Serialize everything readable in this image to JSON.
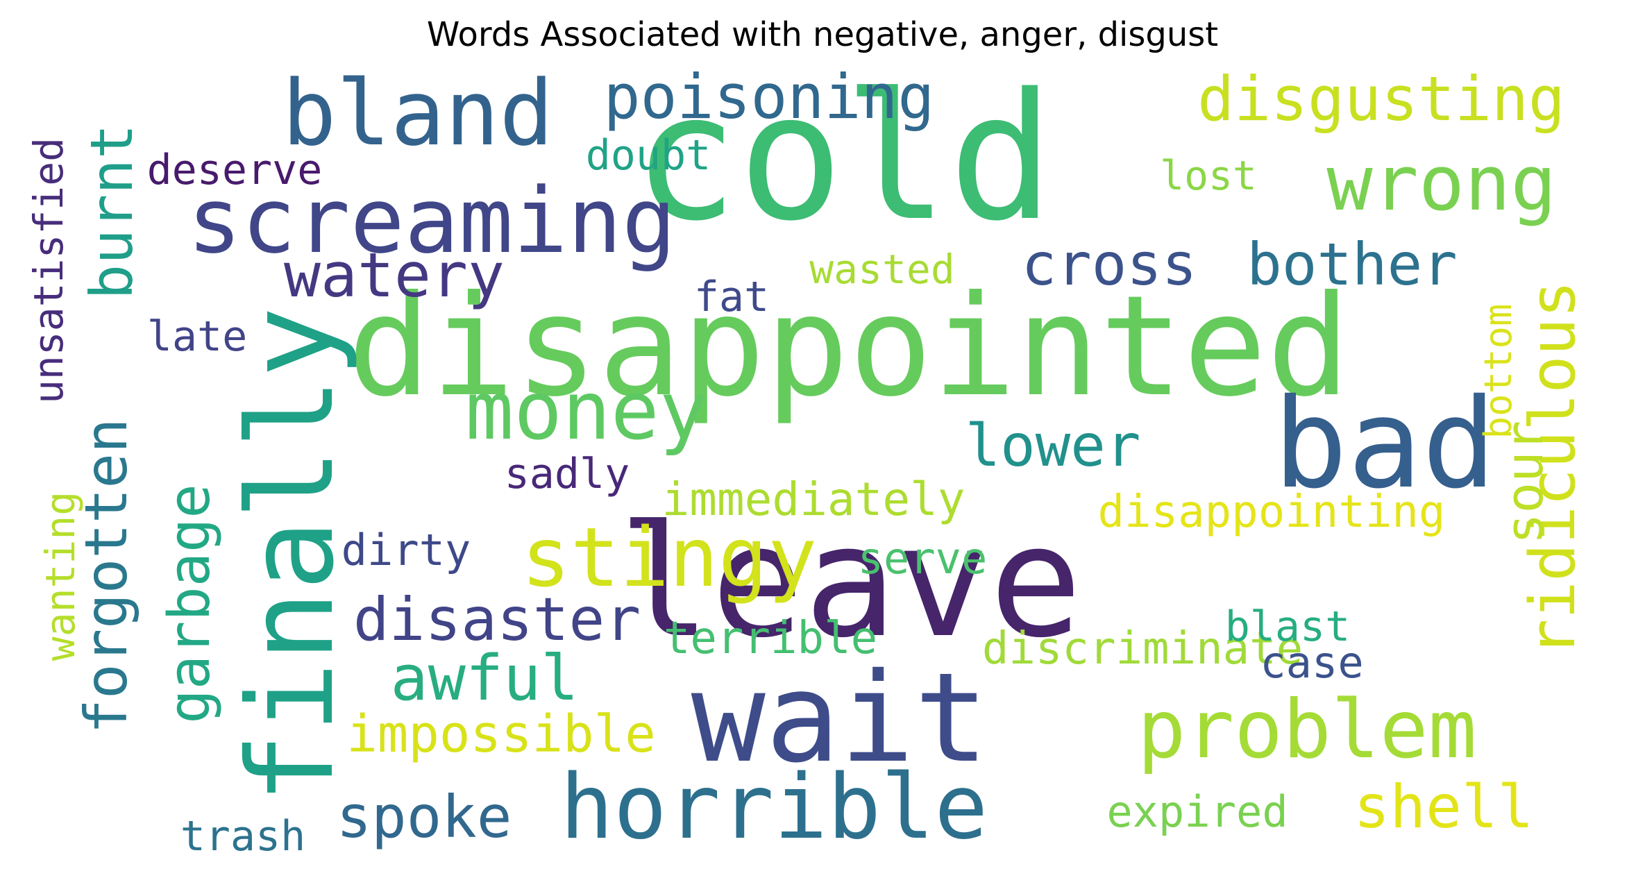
{
  "title": "Words Associated with negative, anger, disgust",
  "words": [
    {
      "text": "cold",
      "color": "#3dbc74"
    },
    {
      "text": "disappointed",
      "color": "#66cb5d"
    },
    {
      "text": "leave",
      "color": "#46256b"
    },
    {
      "text": "bad",
      "color": "#355f8d"
    },
    {
      "text": "wait",
      "color": "#3e4c8a"
    },
    {
      "text": "finally",
      "color": "#1fa187"
    },
    {
      "text": "bland",
      "color": "#33638d"
    },
    {
      "text": "screaming",
      "color": "#404688"
    },
    {
      "text": "stingy",
      "color": "#d2e21b"
    },
    {
      "text": "horrible",
      "color": "#2d708e"
    },
    {
      "text": "problem",
      "color": "#a5db36"
    },
    {
      "text": "money",
      "color": "#5ec962"
    },
    {
      "text": "wrong",
      "color": "#7ad151"
    },
    {
      "text": "disgusting",
      "color": "#c8e020"
    },
    {
      "text": "poisoning",
      "color": "#31688e"
    },
    {
      "text": "watery",
      "color": "#453882"
    },
    {
      "text": "cross",
      "color": "#3b528b"
    },
    {
      "text": "bother",
      "color": "#2c728e"
    },
    {
      "text": "ridiculous",
      "color": "#d0e11c"
    },
    {
      "text": "burnt",
      "color": "#1f9e89"
    },
    {
      "text": "forgotten",
      "color": "#2a788e"
    },
    {
      "text": "garbage",
      "color": "#22a884"
    },
    {
      "text": "unsatisfied",
      "color": "#472d7b"
    },
    {
      "text": "wanting",
      "color": "#b5de2b"
    },
    {
      "text": "disaster",
      "color": "#414487"
    },
    {
      "text": "awful",
      "color": "#27ad81"
    },
    {
      "text": "spoke",
      "color": "#31688e"
    },
    {
      "text": "shell",
      "color": "#e2e418"
    },
    {
      "text": "sour",
      "color": "#bddf26"
    },
    {
      "text": "lower",
      "color": "#21918c"
    },
    {
      "text": "impossible",
      "color": "#d8e219"
    },
    {
      "text": "immediately",
      "color": "#addc30"
    },
    {
      "text": "disappointing",
      "color": "#e5e419"
    },
    {
      "text": "terrible",
      "color": "#44bf70"
    },
    {
      "text": "discriminate",
      "color": "#a0da39"
    },
    {
      "text": "dirty",
      "color": "#3e4989"
    },
    {
      "text": "serve",
      "color": "#4ac16d"
    },
    {
      "text": "blast",
      "color": "#26ad81"
    },
    {
      "text": "case",
      "color": "#3b528b"
    },
    {
      "text": "expired",
      "color": "#7ad151"
    },
    {
      "text": "trash",
      "color": "#2c728e"
    },
    {
      "text": "bottom",
      "color": "#dae319"
    },
    {
      "text": "deserve",
      "color": "#481a6c"
    },
    {
      "text": "doubt",
      "color": "#20a386"
    },
    {
      "text": "lost",
      "color": "#8bd646"
    },
    {
      "text": "wasted",
      "color": "#a8db34"
    },
    {
      "text": "fat",
      "color": "#3e4a89"
    },
    {
      "text": "late",
      "color": "#414487"
    },
    {
      "text": "sadly",
      "color": "#482878"
    }
  ]
}
